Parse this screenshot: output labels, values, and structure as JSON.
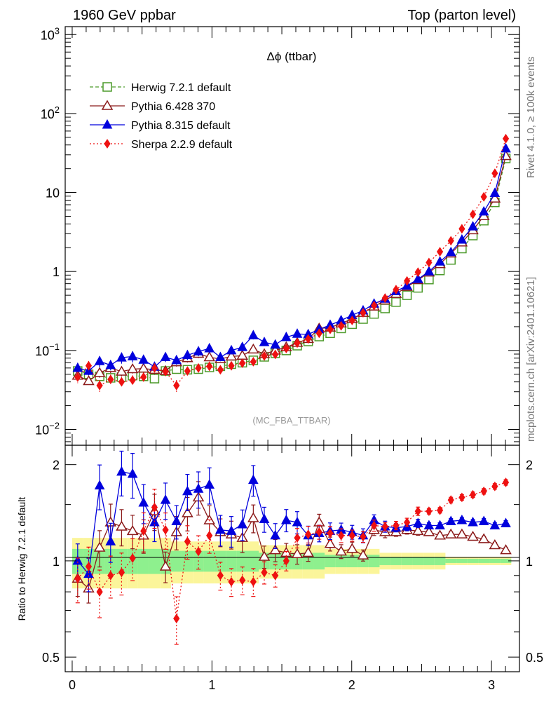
{
  "header": {
    "left_title": "1960 GeV ppbar",
    "right_title": "Top (parton level)"
  },
  "side_labels": {
    "rivet": "Rivet 4.1.0, ≥ 100k events",
    "mcplots": "mcplots.cern.ch [arXiv:2401.10621]"
  },
  "chart_data": {
    "type": "line",
    "title": "Δϕ (ttbar)",
    "analysis_label": "(MC_FBA_TTBAR)",
    "ratio_ylabel": "Ratio to Herwig 7.2.1 default",
    "xlim": [
      -0.05,
      3.2
    ],
    "main_ylim_log10": [
      -2.2,
      3.1
    ],
    "ratio_ylim": [
      0.45,
      2.3
    ],
    "main_y_ticks": [
      {
        "value": 1000,
        "label": "10^3"
      },
      {
        "value": 100,
        "label": "10^2"
      },
      {
        "value": 10,
        "label": "10"
      },
      {
        "value": 1,
        "label": "1"
      },
      {
        "value": 0.1,
        "label": "10^-1"
      },
      {
        "value": 0.01,
        "label": "10^-2"
      }
    ],
    "ratio_y_ticks": [
      {
        "value": 0.5,
        "label": "0.5"
      },
      {
        "value": 1,
        "label": "1"
      },
      {
        "value": 2,
        "label": "2"
      }
    ],
    "x_ticks": [
      {
        "value": 0,
        "label": "0"
      },
      {
        "value": 1,
        "label": "1"
      },
      {
        "value": 2,
        "label": "2"
      },
      {
        "value": 3,
        "label": "3"
      }
    ],
    "x": [
      0.0393,
      0.1178,
      0.1963,
      0.2749,
      0.3534,
      0.432,
      0.5105,
      0.589,
      0.6676,
      0.7461,
      0.8247,
      0.9032,
      0.9817,
      1.0603,
      1.1388,
      1.2174,
      1.2959,
      1.3744,
      1.453,
      1.5315,
      1.6101,
      1.6886,
      1.7671,
      1.8457,
      1.9242,
      2.0028,
      2.0813,
      2.1598,
      2.2384,
      2.3169,
      2.3955,
      2.474,
      2.5525,
      2.6311,
      2.7096,
      2.7882,
      2.8667,
      2.9452,
      3.0238,
      3.1023
    ],
    "series": [
      {
        "name": "Herwig 7.2.1 default",
        "color": "#4c9a2a",
        "marker": "open-square",
        "dash": "5,3",
        "values": [
          0.055,
          0.05,
          0.047,
          0.045,
          0.046,
          0.048,
          0.047,
          0.044,
          0.055,
          0.058,
          0.057,
          0.058,
          0.061,
          0.063,
          0.067,
          0.07,
          0.075,
          0.083,
          0.092,
          0.1,
          0.115,
          0.13,
          0.15,
          0.165,
          0.19,
          0.215,
          0.25,
          0.29,
          0.34,
          0.41,
          0.5,
          0.62,
          0.79,
          1.03,
          1.4,
          1.95,
          2.85,
          4.4,
          7.5,
          27.0
        ],
        "ratio": [
          1,
          1,
          1,
          1,
          1,
          1,
          1,
          1,
          1,
          1,
          1,
          1,
          1,
          1,
          1,
          1,
          1,
          1,
          1,
          1,
          1,
          1,
          1,
          1,
          1,
          1,
          1,
          1,
          1,
          1,
          1,
          1,
          1,
          1,
          1,
          1,
          1,
          1,
          1,
          1
        ],
        "rerr": [
          0.06,
          0.06,
          0.06,
          0.06,
          0.06,
          0.06,
          0.06,
          0.06,
          0.06,
          0.05,
          0.05,
          0.05,
          0.05,
          0.05,
          0.05,
          0.05,
          0.05,
          0.04,
          0.04,
          0.04,
          0.04,
          0.04,
          0.04,
          0.03,
          0.03,
          0.03,
          0.03,
          0.03,
          0.02,
          0.02,
          0.02,
          0.02,
          0.02,
          0.02,
          0.01,
          0.01,
          0.01,
          0.01,
          0.01,
          0.01
        ]
      },
      {
        "name": "Pythia 6.428 370",
        "color": "#8b1a1a",
        "marker": "open-triangle",
        "dash": "",
        "values": [
          0.048,
          0.041,
          0.052,
          0.06,
          0.054,
          0.058,
          0.059,
          0.057,
          0.055,
          0.071,
          0.08,
          0.091,
          0.082,
          0.078,
          0.084,
          0.086,
          0.103,
          0.09,
          0.1,
          0.11,
          0.125,
          0.14,
          0.19,
          0.195,
          0.22,
          0.25,
          0.3,
          0.36,
          0.43,
          0.52,
          0.64,
          0.78,
          0.97,
          1.24,
          1.69,
          2.33,
          3.33,
          5.02,
          8.4,
          29.0
        ],
        "ratio": [
          0.88,
          0.82,
          1.1,
          1.32,
          1.28,
          1.24,
          1.2,
          1.43,
          0.96,
          1.23,
          1.41,
          1.58,
          1.34,
          1.23,
          1.21,
          1.18,
          1.36,
          1.03,
          1.08,
          1.06,
          1.05,
          1.06,
          1.32,
          1.13,
          1.07,
          1.09,
          1.04,
          1.25,
          1.23,
          1.23,
          1.25,
          1.24,
          1.23,
          1.2,
          1.21,
          1.21,
          1.19,
          1.17,
          1.12,
          1.08
        ],
        "err": [
          0.12,
          0.1,
          0.13,
          0.14,
          0.13,
          0.12,
          0.12,
          0.13,
          0.11,
          0.12,
          0.12,
          0.12,
          0.11,
          0.1,
          0.1,
          0.1,
          0.1,
          0.08,
          0.08,
          0.07,
          0.07,
          0.06,
          0.06,
          0.05,
          0.05,
          0.05,
          0.04,
          0.04,
          0.04,
          0.03,
          0.03,
          0.03,
          0.02,
          0.02,
          0.02,
          0.02,
          0.02,
          0.02,
          0.02,
          0.02
        ]
      },
      {
        "name": "Pythia 8.315 default",
        "color": "#0000dd",
        "marker": "filled-triangle",
        "dash": "",
        "values": [
          0.06,
          0.055,
          0.073,
          0.065,
          0.081,
          0.084,
          0.076,
          0.062,
          0.082,
          0.075,
          0.087,
          0.097,
          0.106,
          0.082,
          0.1,
          0.11,
          0.155,
          0.127,
          0.118,
          0.147,
          0.162,
          0.16,
          0.185,
          0.21,
          0.24,
          0.28,
          0.32,
          0.39,
          0.45,
          0.56,
          0.66,
          0.8,
          1.0,
          1.33,
          1.75,
          2.52,
          3.7,
          5.72,
          9.8,
          36.0
        ],
        "ratio": [
          1.0,
          0.91,
          1.72,
          1.15,
          1.9,
          1.87,
          1.52,
          1.32,
          1.55,
          1.33,
          1.65,
          1.68,
          1.73,
          1.25,
          1.24,
          1.3,
          1.79,
          1.35,
          1.2,
          1.34,
          1.32,
          1.2,
          1.22,
          1.24,
          1.25,
          1.23,
          1.2,
          1.34,
          1.28,
          1.27,
          1.28,
          1.31,
          1.29,
          1.29,
          1.33,
          1.34,
          1.32,
          1.33,
          1.29,
          1.31
        ],
        "err": [
          0.13,
          0.12,
          0.16,
          0.14,
          0.16,
          0.16,
          0.14,
          0.13,
          0.13,
          0.12,
          0.13,
          0.13,
          0.13,
          0.11,
          0.11,
          0.11,
          0.11,
          0.09,
          0.09,
          0.08,
          0.08,
          0.07,
          0.06,
          0.06,
          0.05,
          0.05,
          0.05,
          0.04,
          0.04,
          0.03,
          0.03,
          0.03,
          0.02,
          0.02,
          0.02,
          0.02,
          0.02,
          0.02,
          0.02,
          0.02
        ]
      },
      {
        "name": "Sherpa 2.2.9 default",
        "color": "#ee1111",
        "marker": "filled-diamond",
        "dash": "2,3",
        "values": [
          0.046,
          0.064,
          0.036,
          0.043,
          0.04,
          0.042,
          0.046,
          0.06,
          0.054,
          0.036,
          0.055,
          0.06,
          0.063,
          0.057,
          0.064,
          0.069,
          0.072,
          0.085,
          0.089,
          0.106,
          0.124,
          0.14,
          0.165,
          0.185,
          0.205,
          0.24,
          0.3,
          0.37,
          0.46,
          0.59,
          0.76,
          0.98,
          1.3,
          1.78,
          2.45,
          3.47,
          5.3,
          8.82,
          17.5,
          48.0
        ],
        "ratio": [
          0.88,
          0.96,
          0.8,
          0.9,
          0.92,
          1.02,
          1.24,
          1.47,
          1.25,
          0.66,
          1.15,
          1.07,
          1.2,
          0.9,
          0.86,
          0.87,
          0.86,
          0.92,
          0.9,
          1.0,
          1.18,
          1.21,
          1.23,
          1.22,
          1.2,
          1.2,
          1.19,
          1.29,
          1.28,
          1.29,
          1.32,
          1.43,
          1.43,
          1.44,
          1.55,
          1.58,
          1.61,
          1.65,
          1.71,
          1.76
        ],
        "err": [
          0.16,
          0.15,
          0.17,
          0.15,
          0.15,
          0.15,
          0.14,
          0.14,
          0.13,
          0.17,
          0.12,
          0.12,
          0.12,
          0.1,
          0.1,
          0.1,
          0.1,
          0.08,
          0.08,
          0.07,
          0.07,
          0.06,
          0.05,
          0.05,
          0.05,
          0.04,
          0.04,
          0.04,
          0.03,
          0.03,
          0.03,
          0.03,
          0.02,
          0.02,
          0.02,
          0.02,
          0.02,
          0.02,
          0.02,
          0.02
        ]
      }
    ]
  }
}
